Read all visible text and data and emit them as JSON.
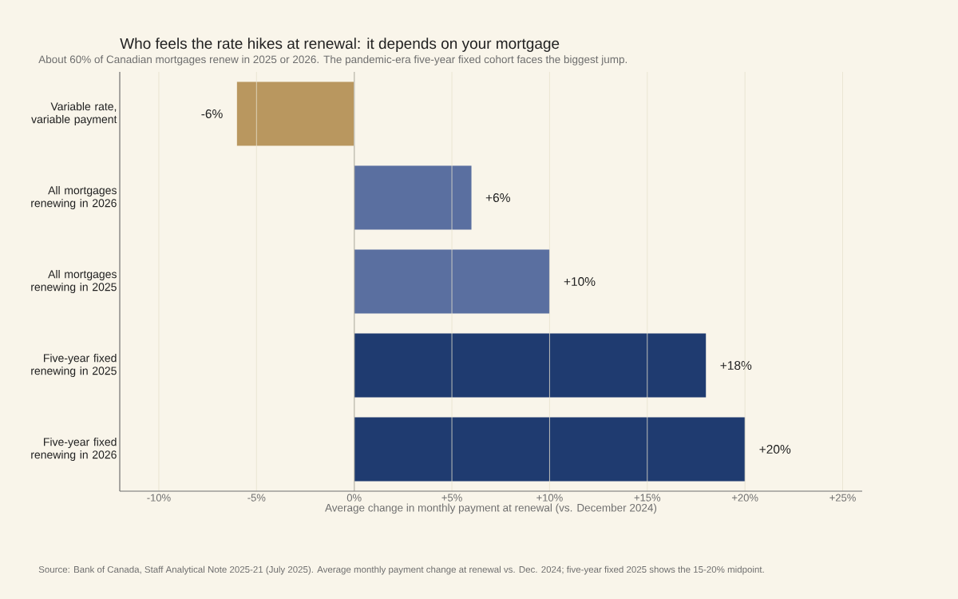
{
  "chart_data": {
    "type": "bar",
    "orientation": "horizontal",
    "title": "Who feels the rate hikes at renewal: it depends on your mortgage",
    "subtitle": "About 60% of Canadian mortgages renew in 2025 or 2026. The pandemic-era five-year fixed cohort faces the biggest jump.",
    "xlabel": "Average change in monthly payment at renewal (vs. December 2024)",
    "categories": [
      "Variable rate, variable payment",
      "All mortgages renewing in 2026",
      "All mortgages renewing in 2025",
      "Five-year fixed renewing in 2025",
      "Five-year fixed renewing in 2026"
    ],
    "values": [
      -6,
      6,
      10,
      18,
      20
    ],
    "colors": [
      "#b9975f",
      "#5a6fa0",
      "#5a6fa0",
      "#1f3b70",
      "#1f3b70"
    ],
    "value_labels": [
      "-6%",
      "+6%",
      "+10%",
      "+18%",
      "+20%"
    ],
    "xlim": [
      -12,
      26
    ],
    "xticks": [
      {
        "value": -10,
        "label": "-10%"
      },
      {
        "value": -5,
        "label": "-5%"
      },
      {
        "value": 0,
        "label": "0%"
      },
      {
        "value": 5,
        "label": "+5%"
      },
      {
        "value": 10,
        "label": "+10%"
      },
      {
        "value": 15,
        "label": "+15%"
      },
      {
        "value": 20,
        "label": "+20%"
      },
      {
        "value": 25,
        "label": "+25%"
      }
    ],
    "grid": "x",
    "ref_lines": [
      {
        "axis": "x",
        "value": 0,
        "color": "#888888"
      }
    ],
    "annotations": [
      "Source: Bank of Canada, Staff Analytical Note 2025-21 (July 2025). Average monthly payment change at renewal vs. Dec. 2024; five-year fixed 2025 shows the 15-20% midpoint."
    ]
  }
}
